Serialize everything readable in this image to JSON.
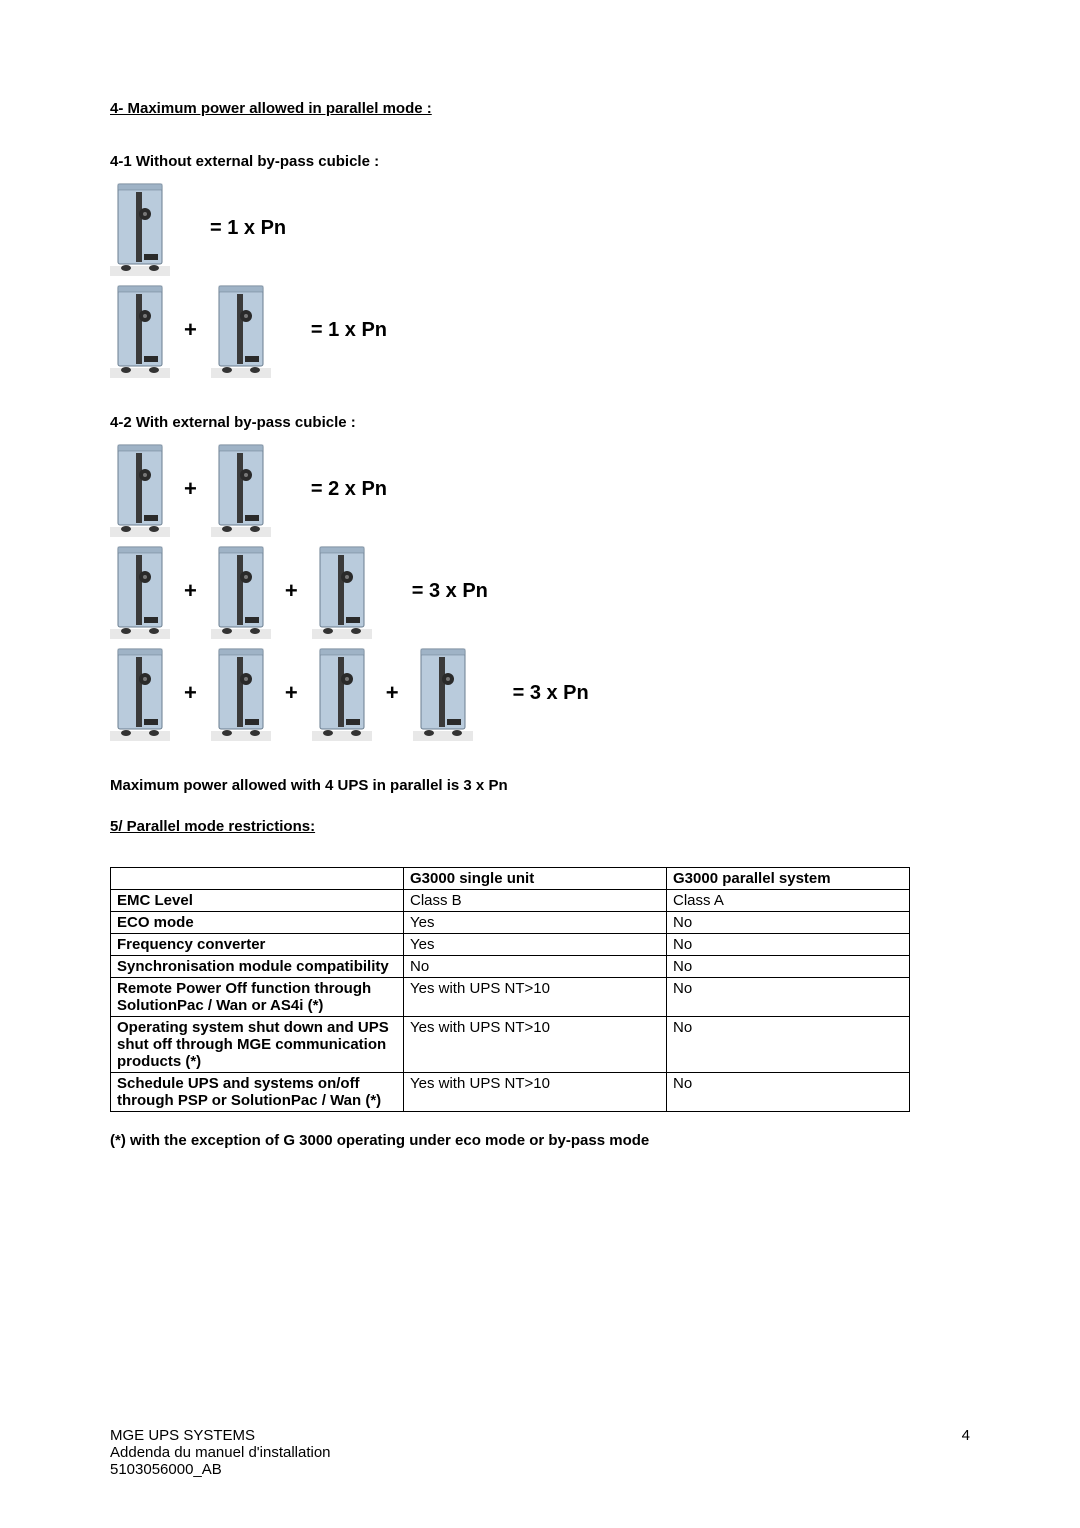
{
  "section4": {
    "title": "4- Maximum power allowed in parallel mode :",
    "sub1_title": "4-1 Without external by-pass cubicle :",
    "sub2_title": "4-2 With external by-pass cubicle :",
    "line_1ups": "= 1 x Pn",
    "line_2ups_noext": "= 1 x Pn",
    "line_2ups_ext": "= 2 x Pn",
    "line_3ups_ext": "= 3 x Pn",
    "line_4ups_ext": "= 3 x Pn",
    "plus": "+",
    "maxnote": "Maximum power allowed with 4 UPS in parallel is 3 x Pn"
  },
  "section5": {
    "title": "5/ Parallel mode restrictions:",
    "columns": [
      "",
      "G3000 single unit",
      "G3000 parallel system"
    ],
    "rows": [
      [
        "EMC Level",
        "Class B",
        "Class A"
      ],
      [
        "ECO mode",
        "Yes",
        "No"
      ],
      [
        "Frequency converter",
        "Yes",
        "No"
      ],
      [
        "Synchronisation module compatibility",
        "No",
        "No"
      ],
      [
        "Remote Power Off function through SolutionPac / Wan  or AS4i (*)",
        "Yes with UPS NT>10",
        "No"
      ],
      [
        "Operating system shut down and UPS shut off through MGE communication products (*)",
        "Yes with UPS NT>10",
        "No"
      ],
      [
        "Schedule UPS and systems on/off through PSP or SolutionPac / Wan (*)",
        "Yes with UPS NT>10",
        "No"
      ]
    ],
    "footnote": " (*) with the exception of G 3000 operating under eco mode or by-pass mode"
  },
  "footer": {
    "line1": "MGE UPS SYSTEMS",
    "line2": "Addenda du manuel d'installation",
    "line3": "5103056000_AB",
    "pagenum": "4"
  },
  "ups_svg": {
    "w": 60,
    "h": 96,
    "body_fill": "#b9cbdc",
    "body_stroke": "#6a7d8f",
    "groove_fill": "#9fb3c6",
    "disk_fill": "#2a2a2a",
    "floor": "#e8e8e8"
  }
}
